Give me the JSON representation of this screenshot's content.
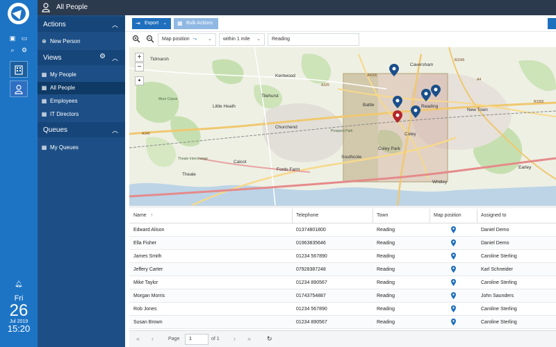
{
  "topbar": {
    "title": "All People"
  },
  "sidebar": {
    "actions": {
      "title": "Actions",
      "items": [
        {
          "label": "New Person"
        }
      ]
    },
    "views": {
      "title": "Views",
      "items": [
        {
          "label": "My People"
        },
        {
          "label": "All People"
        },
        {
          "label": "Employees"
        },
        {
          "label": "IT Directors"
        }
      ]
    },
    "queues": {
      "title": "Queues",
      "items": [
        {
          "label": "My Queues"
        }
      ]
    }
  },
  "datetime": {
    "weekday": "Fri",
    "day": "26",
    "month_year": "Jul 2019",
    "time": "15:20"
  },
  "toolbar": {
    "export_label": "Export",
    "bulk_label": "Bulk Actions"
  },
  "filters": {
    "map_position": "Map position",
    "within": "within 1 mile",
    "location": "Reading"
  },
  "map": {
    "places": [
      "Tidmarsh",
      "Kentwood",
      "Caversham",
      "Little Heath",
      "Tilehurst",
      "Battle",
      "Reading",
      "New Town",
      "Churchend",
      "Coley",
      "Coley Park",
      "Calcot",
      "Southcote",
      "Fords Farm",
      "Theale",
      "Whitley",
      "Earley",
      "Prospect Park",
      "Moor Copse",
      "Theale Interchange",
      "A329",
      "A340",
      "B3350",
      "B3345",
      "A4",
      "A4155"
    ],
    "zoom_in": "+",
    "zoom_out": "−",
    "locate": "•"
  },
  "table": {
    "columns": [
      "Name",
      "Telephone",
      "Town",
      "Map position",
      "Assigned to"
    ],
    "sort_indicator": "↑",
    "rows": [
      {
        "name": "Edward Alison",
        "telephone": "01374801800",
        "town": "Reading",
        "assigned": "Daniel Demo"
      },
      {
        "name": "Ella Fisher",
        "telephone": "01963835646",
        "town": "Reading",
        "assigned": "Daniel Demo"
      },
      {
        "name": "James Smith",
        "telephone": "01234 567890",
        "town": "Reading",
        "assigned": "Caroline Sterling"
      },
      {
        "name": "Jeffery Carter",
        "telephone": "07928387248",
        "town": "Reading",
        "assigned": "Karl Schneider"
      },
      {
        "name": "Mike Taylor",
        "telephone": "01234 890567",
        "town": "Reading",
        "assigned": "Caroline Sterling"
      },
      {
        "name": "Morgan Morris",
        "telephone": "01743754887",
        "town": "Reading",
        "assigned": "John Saunders"
      },
      {
        "name": "Rob Jones",
        "telephone": "01234 567890",
        "town": "Reading",
        "assigned": "Caroline Sterling"
      },
      {
        "name": "Susan Brown",
        "telephone": "01234 890567",
        "town": "Reading",
        "assigned": "Caroline Sterling"
      }
    ]
  },
  "pager": {
    "page_label": "Page",
    "page_value": "1",
    "of_label": "of 1"
  },
  "colors": {
    "rail": "#1d74c4",
    "topbar": "#2c3a4d",
    "sidebar": "#1d4f86",
    "accent": "#1e6fbd",
    "pin": "#1a4f8a",
    "pin_selected": "#b3262c"
  }
}
